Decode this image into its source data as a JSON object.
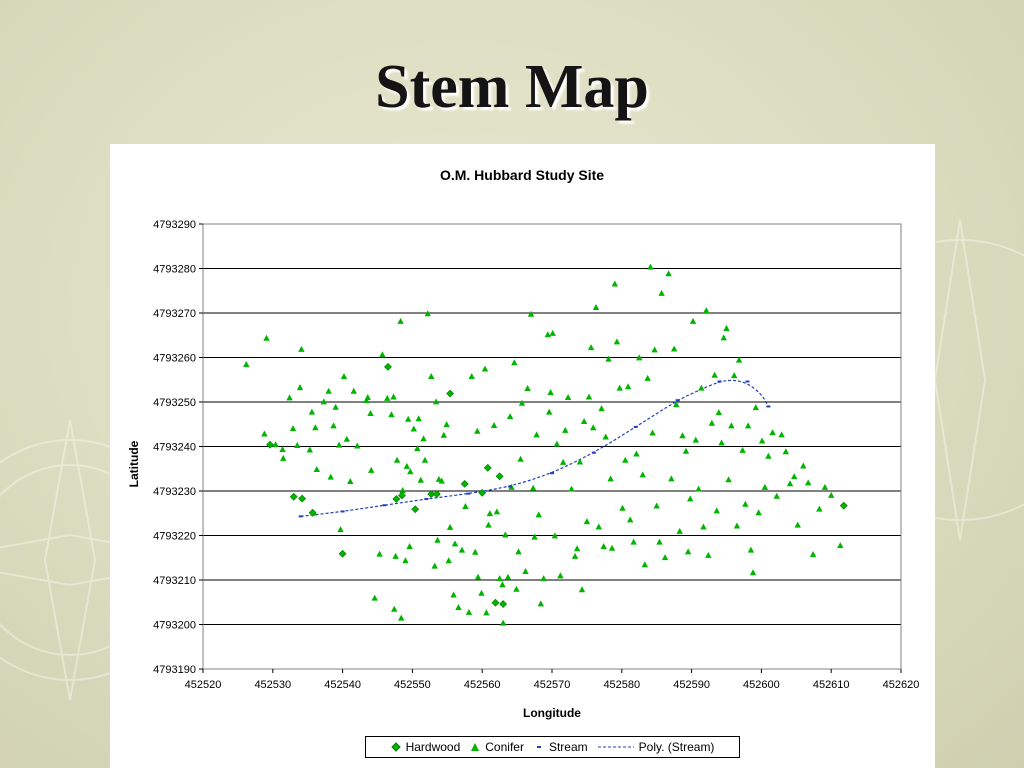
{
  "slide": {
    "title": "Stem Map"
  },
  "colors": {
    "point": "#00b400",
    "point_stroke": "#007a00",
    "stream": "#1f3fbf",
    "background": "#e2e2c8"
  },
  "chart_data": {
    "type": "scatter",
    "title": "O.M. Hubbard Study Site",
    "xlabel": "Longitude",
    "ylabel": "Latitude",
    "xlim": [
      452520,
      452620
    ],
    "ylim": [
      4793190,
      4793290
    ],
    "xticks": [
      452520,
      452530,
      452540,
      452550,
      452560,
      452570,
      452580,
      452590,
      452600,
      452610,
      452620
    ],
    "yticks": [
      4793190,
      4793200,
      4793210,
      4793220,
      4793230,
      4793240,
      4793250,
      4793260,
      4793270,
      4793280,
      4793290
    ],
    "grid": "horizontal",
    "legend_position": "bottom",
    "series": [
      {
        "name": "Hardwood",
        "marker": "diamond",
        "points": [
          [
            452529.6,
            4793240.4
          ],
          [
            452533.0,
            4793228.7
          ],
          [
            452534.2,
            4793228.3
          ],
          [
            452535.7,
            4793225.1
          ],
          [
            452540.0,
            4793215.9
          ],
          [
            452546.5,
            4793257.9
          ],
          [
            452547.7,
            4793228.2
          ],
          [
            452548.5,
            4793229.0
          ],
          [
            452550.4,
            4793225.9
          ],
          [
            452552.7,
            4793229.3
          ],
          [
            452553.5,
            4793229.3
          ],
          [
            452555.4,
            4793251.9
          ],
          [
            452557.5,
            4793231.6
          ],
          [
            452560.0,
            4793229.6
          ],
          [
            452560.8,
            4793235.2
          ],
          [
            452561.9,
            4793204.9
          ],
          [
            452562.5,
            4793233.3
          ],
          [
            452563.0,
            4793204.6
          ],
          [
            452611.8,
            4793226.7
          ]
        ]
      },
      {
        "name": "Conifer",
        "marker": "triangle",
        "points": [
          [
            452526.2,
            4793258.4
          ],
          [
            452528.8,
            4793242.8
          ],
          [
            452529.1,
            4793264.3
          ],
          [
            452530.4,
            4793240.4
          ],
          [
            452531.4,
            4793239.3
          ],
          [
            452531.5,
            4793237.3
          ],
          [
            452532.4,
            4793250.9
          ],
          [
            452532.9,
            4793244.0
          ],
          [
            452533.5,
            4793240.2
          ],
          [
            452533.9,
            4793253.2
          ],
          [
            452534.1,
            4793261.8
          ],
          [
            452535.3,
            4793239.2
          ],
          [
            452535.6,
            4793247.7
          ],
          [
            452535.9,
            4793225.0
          ],
          [
            452536.1,
            4793244.2
          ],
          [
            452536.3,
            4793234.8
          ],
          [
            452537.3,
            4793250.0
          ],
          [
            452538.0,
            4793252.4
          ],
          [
            452538.3,
            4793233.1
          ],
          [
            452538.7,
            4793244.6
          ],
          [
            452539.0,
            4793248.8
          ],
          [
            452539.5,
            4793240.3
          ],
          [
            452539.7,
            4793221.3
          ],
          [
            452540.2,
            4793255.7
          ],
          [
            452540.6,
            4793241.6
          ],
          [
            452541.1,
            4793232.1
          ],
          [
            452541.6,
            4793252.4
          ],
          [
            452542.1,
            4793240.1
          ],
          [
            452543.4,
            4793250.3
          ],
          [
            452543.6,
            4793251.0
          ],
          [
            452544.0,
            4793247.4
          ],
          [
            452544.1,
            4793234.6
          ],
          [
            452544.6,
            4793205.9
          ],
          [
            452545.3,
            4793215.8
          ],
          [
            452545.7,
            4793260.6
          ],
          [
            452546.4,
            4793250.8
          ],
          [
            452547.0,
            4793247.1
          ],
          [
            452547.3,
            4793251.1
          ],
          [
            452547.4,
            4793203.4
          ],
          [
            452547.6,
            4793215.3
          ],
          [
            452547.8,
            4793236.9
          ],
          [
            452548.3,
            4793268.1
          ],
          [
            452548.4,
            4793201.4
          ],
          [
            452548.6,
            4793230.1
          ],
          [
            452549.0,
            4793214.3
          ],
          [
            452549.2,
            4793235.5
          ],
          [
            452549.4,
            4793246.1
          ],
          [
            452549.6,
            4793217.5
          ],
          [
            452549.7,
            4793234.3
          ],
          [
            452550.2,
            4793243.9
          ],
          [
            452550.7,
            4793239.5
          ],
          [
            452550.9,
            4793246.2
          ],
          [
            452551.2,
            4793232.4
          ],
          [
            452551.6,
            4793241.7
          ],
          [
            452551.8,
            4793236.9
          ],
          [
            452552.2,
            4793269.8
          ],
          [
            452552.7,
            4793255.7
          ],
          [
            452553.2,
            4793213.1
          ],
          [
            452553.4,
            4793250.0
          ],
          [
            452553.6,
            4793218.9
          ],
          [
            452553.8,
            4793232.6
          ],
          [
            452554.2,
            4793232.2
          ],
          [
            452554.5,
            4793242.5
          ],
          [
            452554.9,
            4793244.9
          ],
          [
            452555.2,
            4793214.3
          ],
          [
            452555.4,
            4793221.8
          ],
          [
            452555.9,
            4793206.6
          ],
          [
            452556.1,
            4793218.1
          ],
          [
            452556.6,
            4793203.8
          ],
          [
            452557.1,
            4793216.7
          ],
          [
            452557.6,
            4793226.5
          ],
          [
            452558.1,
            4793202.7
          ],
          [
            452558.5,
            4793255.7
          ],
          [
            452559.0,
            4793216.2
          ],
          [
            452559.3,
            4793243.4
          ],
          [
            452559.4,
            4793210.6
          ],
          [
            452559.9,
            4793207.0
          ],
          [
            452560.4,
            4793257.4
          ],
          [
            452560.6,
            4793202.6
          ],
          [
            452560.9,
            4793222.3
          ],
          [
            452561.1,
            4793224.9
          ],
          [
            452561.7,
            4793244.7
          ],
          [
            452562.1,
            4793225.3
          ],
          [
            452562.5,
            4793210.3
          ],
          [
            452562.9,
            4793208.9
          ],
          [
            452563.0,
            4793200.3
          ],
          [
            452563.3,
            4793220.1
          ],
          [
            452563.7,
            4793210.6
          ],
          [
            452564.0,
            4793246.7
          ],
          [
            452564.2,
            4793230.8
          ],
          [
            452564.6,
            4793258.8
          ],
          [
            452564.9,
            4793207.9
          ],
          [
            452565.2,
            4793216.3
          ],
          [
            452565.5,
            4793237.1
          ],
          [
            452565.7,
            4793249.7
          ],
          [
            452566.2,
            4793211.9
          ],
          [
            452566.5,
            4793253.0
          ],
          [
            452567.0,
            4793269.7
          ],
          [
            452567.3,
            4793230.6
          ],
          [
            452567.5,
            4793219.6
          ],
          [
            452567.8,
            4793242.6
          ],
          [
            452568.1,
            4793224.6
          ],
          [
            452568.4,
            4793204.6
          ],
          [
            452568.8,
            4793210.3
          ],
          [
            452569.4,
            4793265.1
          ],
          [
            452569.6,
            4793247.7
          ],
          [
            452569.8,
            4793252.1
          ],
          [
            452570.1,
            4793265.4
          ],
          [
            452570.4,
            4793219.9
          ],
          [
            452570.7,
            4793240.5
          ],
          [
            452571.2,
            4793210.9
          ],
          [
            452571.6,
            4793236.4
          ],
          [
            452571.9,
            4793243.6
          ],
          [
            452572.3,
            4793251.0
          ],
          [
            452572.8,
            4793230.4
          ],
          [
            452573.3,
            4793215.3
          ],
          [
            452573.6,
            4793217.0
          ],
          [
            452574.0,
            4793236.5
          ],
          [
            452574.3,
            4793207.8
          ],
          [
            452574.6,
            4793245.6
          ],
          [
            452575.0,
            4793223.1
          ],
          [
            452575.3,
            4793251.1
          ],
          [
            452575.6,
            4793262.2
          ],
          [
            452575.9,
            4793244.2
          ],
          [
            452576.3,
            4793271.2
          ],
          [
            452576.7,
            4793221.9
          ],
          [
            452577.1,
            4793248.5
          ],
          [
            452577.4,
            4793217.5
          ],
          [
            452577.7,
            4793242.1
          ],
          [
            452578.1,
            4793259.6
          ],
          [
            452578.4,
            4793232.7
          ],
          [
            452578.6,
            4793217.1
          ],
          [
            452579.0,
            4793276.5
          ],
          [
            452579.3,
            4793263.5
          ],
          [
            452579.7,
            4793253.1
          ],
          [
            452580.1,
            4793226.1
          ],
          [
            452580.5,
            4793236.9
          ],
          [
            452580.9,
            4793253.4
          ],
          [
            452581.2,
            4793223.5
          ],
          [
            452581.7,
            4793218.5
          ],
          [
            452582.1,
            4793238.3
          ],
          [
            452582.5,
            4793259.9
          ],
          [
            452583.0,
            4793233.6
          ],
          [
            452583.3,
            4793213.4
          ],
          [
            452583.7,
            4793255.3
          ],
          [
            452584.1,
            4793280.3
          ],
          [
            452584.4,
            4793243.0
          ],
          [
            452584.7,
            4793261.7
          ],
          [
            452585.0,
            4793226.6
          ],
          [
            452585.4,
            4793218.5
          ],
          [
            452585.7,
            4793274.4
          ],
          [
            452586.2,
            4793215.0
          ],
          [
            452586.7,
            4793278.8
          ],
          [
            452587.1,
            4793232.7
          ],
          [
            452587.5,
            4793261.9
          ],
          [
            452587.8,
            4793249.4
          ],
          [
            452588.3,
            4793220.9
          ],
          [
            452588.7,
            4793242.4
          ],
          [
            452589.2,
            4793238.9
          ],
          [
            452589.5,
            4793216.3
          ],
          [
            452589.8,
            4793228.2
          ],
          [
            452590.2,
            4793268.1
          ],
          [
            452590.6,
            4793241.4
          ],
          [
            452591.0,
            4793230.4
          ],
          [
            452591.4,
            4793253.1
          ],
          [
            452591.7,
            4793221.9
          ],
          [
            452592.1,
            4793270.5
          ],
          [
            452592.4,
            4793215.5
          ],
          [
            452592.9,
            4793245.2
          ],
          [
            452593.3,
            4793256.0
          ],
          [
            452593.6,
            4793225.5
          ],
          [
            452593.9,
            4793247.6
          ],
          [
            452594.3,
            4793240.8
          ],
          [
            452594.6,
            4793264.4
          ],
          [
            452595.0,
            4793266.5
          ],
          [
            452595.3,
            4793232.5
          ],
          [
            452595.7,
            4793244.6
          ],
          [
            452596.1,
            4793255.9
          ],
          [
            452596.5,
            4793222.1
          ],
          [
            452596.8,
            4793259.4
          ],
          [
            452597.3,
            4793239.1
          ],
          [
            452597.7,
            4793227.0
          ],
          [
            452598.1,
            4793244.6
          ],
          [
            452598.5,
            4793216.7
          ],
          [
            452598.8,
            4793211.6
          ],
          [
            452599.2,
            4793248.7
          ],
          [
            452599.6,
            4793225.1
          ],
          [
            452600.1,
            4793241.2
          ],
          [
            452600.5,
            4793230.8
          ],
          [
            452601.0,
            4793237.8
          ],
          [
            452601.6,
            4793243.1
          ],
          [
            452602.2,
            4793228.8
          ],
          [
            452602.9,
            4793242.6
          ],
          [
            452603.5,
            4793238.8
          ],
          [
            452604.1,
            4793231.6
          ],
          [
            452604.7,
            4793233.2
          ],
          [
            452605.2,
            4793222.3
          ],
          [
            452606.0,
            4793235.6
          ],
          [
            452606.7,
            4793231.8
          ],
          [
            452607.4,
            4793215.7
          ],
          [
            452608.3,
            4793225.9
          ],
          [
            452609.1,
            4793230.8
          ],
          [
            452610.0,
            4793229.0
          ],
          [
            452611.3,
            4793217.7
          ]
        ]
      },
      {
        "name": "Stream",
        "marker": "dash",
        "points": [
          [
            452534.0,
            4793224.3
          ],
          [
            452540.0,
            4793225.4
          ],
          [
            452546.0,
            4793226.8
          ],
          [
            452552.0,
            4793228.2
          ],
          [
            452558.0,
            4793229.4
          ],
          [
            452564.0,
            4793231.0
          ],
          [
            452570.0,
            4793234.0
          ],
          [
            452576.0,
            4793238.6
          ],
          [
            452582.0,
            4793244.4
          ],
          [
            452588.0,
            4793250.4
          ],
          [
            452594.0,
            4793254.6
          ],
          [
            452598.0,
            4793254.6
          ],
          [
            452601.0,
            4793249.0
          ]
        ]
      },
      {
        "name": "Poly. (Stream)",
        "marker": "dashed-line",
        "points": [
          [
            452534.0,
            4793224.3
          ],
          [
            452540.0,
            4793225.4
          ],
          [
            452546.0,
            4793226.8
          ],
          [
            452552.0,
            4793228.2
          ],
          [
            452558.0,
            4793229.4
          ],
          [
            452564.0,
            4793231.0
          ],
          [
            452570.0,
            4793234.0
          ],
          [
            452576.0,
            4793238.6
          ],
          [
            452582.0,
            4793244.4
          ],
          [
            452588.0,
            4793250.4
          ],
          [
            452591.0,
            4793252.6
          ],
          [
            452594.0,
            4793254.6
          ],
          [
            452596.0,
            4793255.0
          ],
          [
            452598.0,
            4793254.2
          ],
          [
            452600.0,
            4793251.8
          ],
          [
            452601.0,
            4793249.0
          ]
        ]
      }
    ]
  }
}
